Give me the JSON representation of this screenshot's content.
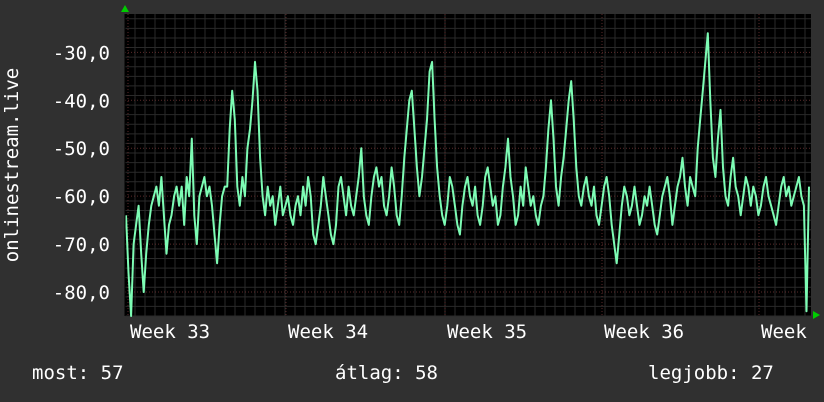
{
  "chart_data": {
    "type": "line",
    "ylabel": "onlinestream.live",
    "ylim": [
      -85,
      -22
    ],
    "yticks": [
      -30,
      -40,
      -50,
      -60,
      -70,
      -80
    ],
    "ytick_labels": [
      "-30,0",
      "-40,0",
      "-50,0",
      "-60,0",
      "-70,0",
      "-80,0"
    ],
    "xticks": [
      "Week 33",
      "Week 34",
      "Week 35",
      "Week 36",
      "Week"
    ],
    "grid": true,
    "colors": {
      "background": "#303030",
      "plot_background": "#000000",
      "grid": "#5a2a2a",
      "line": "#7dfcb4",
      "arrow": "#00cc00"
    },
    "series": [
      {
        "values": [
          -64,
          -76,
          -85,
          -70,
          -66,
          -62,
          -72,
          -80,
          -72,
          -66,
          -62,
          -60,
          -58,
          -62,
          -56,
          -64,
          -72,
          -66,
          -64,
          -60,
          -58,
          -62,
          -58,
          -66,
          -56,
          -60,
          -48,
          -64,
          -70,
          -60,
          -58,
          -56,
          -60,
          -58,
          -62,
          -68,
          -74,
          -66,
          -60,
          -58,
          -58,
          -46,
          -38,
          -44,
          -58,
          -62,
          -56,
          -60,
          -50,
          -46,
          -40,
          -32,
          -38,
          -52,
          -60,
          -64,
          -58,
          -62,
          -60,
          -66,
          -62,
          -58,
          -64,
          -62,
          -60,
          -64,
          -66,
          -62,
          -60,
          -64,
          -58,
          -62,
          -56,
          -60,
          -68,
          -70,
          -66,
          -62,
          -56,
          -60,
          -64,
          -68,
          -70,
          -66,
          -58,
          -56,
          -60,
          -64,
          -58,
          -62,
          -64,
          -60,
          -56,
          -50,
          -60,
          -64,
          -66,
          -60,
          -56,
          -54,
          -58,
          -56,
          -62,
          -64,
          -60,
          -54,
          -58,
          -64,
          -66,
          -60,
          -52,
          -46,
          -40,
          -38,
          -46,
          -54,
          -60,
          -56,
          -50,
          -44,
          -34,
          -32,
          -44,
          -54,
          -60,
          -64,
          -66,
          -62,
          -56,
          -58,
          -62,
          -66,
          -68,
          -62,
          -58,
          -56,
          -60,
          -62,
          -58,
          -64,
          -66,
          -62,
          -56,
          -54,
          -58,
          -62,
          -60,
          -66,
          -64,
          -58,
          -54,
          -48,
          -56,
          -60,
          -66,
          -64,
          -58,
          -62,
          -54,
          -58,
          -62,
          -60,
          -64,
          -66,
          -62,
          -60,
          -54,
          -46,
          -40,
          -48,
          -58,
          -62,
          -56,
          -52,
          -46,
          -40,
          -36,
          -44,
          -54,
          -60,
          -62,
          -58,
          -56,
          -60,
          -62,
          -58,
          -64,
          -66,
          -62,
          -58,
          -56,
          -60,
          -66,
          -70,
          -74,
          -68,
          -62,
          -58,
          -60,
          -64,
          -62,
          -58,
          -62,
          -66,
          -64,
          -60,
          -62,
          -58,
          -62,
          -66,
          -68,
          -64,
          -60,
          -58,
          -56,
          -60,
          -66,
          -62,
          -58,
          -56,
          -52,
          -58,
          -62,
          -56,
          -58,
          -60,
          -50,
          -44,
          -38,
          -32,
          -26,
          -40,
          -52,
          -56,
          -48,
          -42,
          -54,
          -60,
          -62,
          -56,
          -52,
          -58,
          -60,
          -64,
          -60,
          -56,
          -58,
          -62,
          -58,
          -60,
          -64,
          -62,
          -58,
          -56,
          -60,
          -62,
          -64,
          -66,
          -62,
          -58,
          -56,
          -60,
          -58,
          -62,
          -60,
          -58,
          -56,
          -60,
          -62,
          -84,
          -58
        ]
      }
    ]
  },
  "stats": {
    "now": "most: 57",
    "avg": "átlag: 58",
    "best": "legjobb: 27"
  }
}
